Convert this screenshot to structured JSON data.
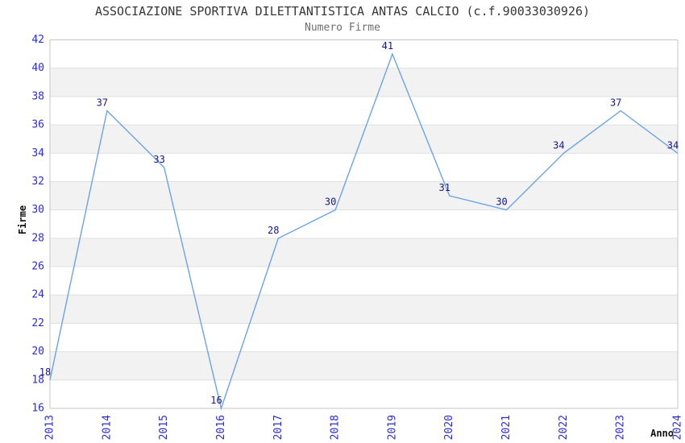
{
  "page": {
    "background": "#ffffff"
  },
  "chart_data": {
    "type": "line",
    "title": "ASSOCIAZIONE SPORTIVA DILETTANTISTICA ANTAS CALCIO (c.f.90033030926)",
    "subtitle": "Numero Firme",
    "xlabel": "Anno",
    "ylabel": "Firme",
    "categories": [
      "2013",
      "2014",
      "2015",
      "2016",
      "2017",
      "2018",
      "2019",
      "2020",
      "2021",
      "2022",
      "2023",
      "2024"
    ],
    "series": [
      {
        "name": "Numero Firme",
        "values": [
          18,
          37,
          33,
          16,
          28,
          30,
          41,
          31,
          30,
          34,
          37,
          34
        ]
      }
    ],
    "ylim": [
      16,
      42
    ],
    "ytick_step": 2,
    "yticks": [
      16,
      18,
      20,
      22,
      24,
      26,
      28,
      30,
      32,
      34,
      36,
      38,
      40,
      42
    ],
    "grid": "horizontal",
    "banded_rows": true,
    "legend": "none",
    "point_labels_visible": true,
    "x_tick_rotation_deg": -90,
    "colors": {
      "line": "#6ba4e7",
      "tick_label": "#2b2bdb",
      "point_label": "#16168c",
      "band": "#f2f2f2",
      "grid": "#e0e0e0",
      "border": "#c6c6c6",
      "title": "#373737",
      "subtitle": "#6e6e6e",
      "axis_title": "#111111"
    }
  }
}
